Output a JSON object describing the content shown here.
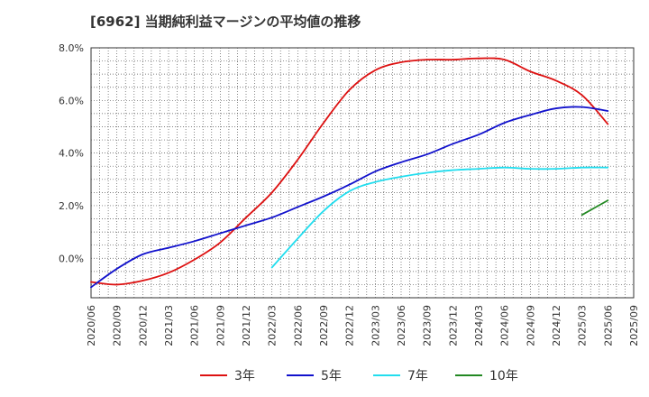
{
  "chart_data": {
    "type": "line",
    "title": "[6962]  当期純利益マージンの平均値の推移",
    "xlabel": "",
    "ylabel": "",
    "ylim": [
      -1.5,
      8.0
    ],
    "yticks": [
      0,
      2,
      4,
      6,
      8
    ],
    "ytick_labels": [
      "0.0%",
      "2.0%",
      "4.0%",
      "6.0%",
      "8.0%"
    ],
    "grid": true,
    "legend_position": "bottom",
    "x_ticks": [
      "2020/06",
      "2020/09",
      "2020/12",
      "2021/03",
      "2021/06",
      "2021/09",
      "2021/12",
      "2022/03",
      "2022/06",
      "2022/09",
      "2022/12",
      "2023/03",
      "2023/06",
      "2023/09",
      "2023/12",
      "2024/03",
      "2024/06",
      "2024/09",
      "2024/12",
      "2025/03",
      "2025/06",
      "2025/09"
    ],
    "series": [
      {
        "name": "3年",
        "color": "#dd1111",
        "start_index": 0,
        "values": [
          -0.9,
          -1.0,
          -0.85,
          -0.55,
          -0.05,
          0.6,
          1.55,
          2.5,
          3.75,
          5.15,
          6.4,
          7.15,
          7.45,
          7.55,
          7.55,
          7.6,
          7.55,
          7.1,
          6.75,
          6.2,
          5.1
        ]
      },
      {
        "name": "5年",
        "color": "#1111cc",
        "start_index": 0,
        "values": [
          -1.1,
          -0.4,
          0.15,
          0.4,
          0.65,
          0.95,
          1.25,
          1.55,
          1.95,
          2.35,
          2.8,
          3.3,
          3.65,
          3.95,
          4.35,
          4.7,
          5.15,
          5.45,
          5.7,
          5.75,
          5.6
        ]
      },
      {
        "name": "7年",
        "color": "#22ddee",
        "start_index": 7,
        "values": [
          -0.35,
          0.75,
          1.8,
          2.55,
          2.9,
          3.1,
          3.25,
          3.35,
          3.4,
          3.45,
          3.4,
          3.4,
          3.45,
          3.45
        ]
      },
      {
        "name": "10年",
        "color": "#228822",
        "start_index": 19,
        "values": [
          1.65,
          2.2
        ]
      }
    ]
  }
}
